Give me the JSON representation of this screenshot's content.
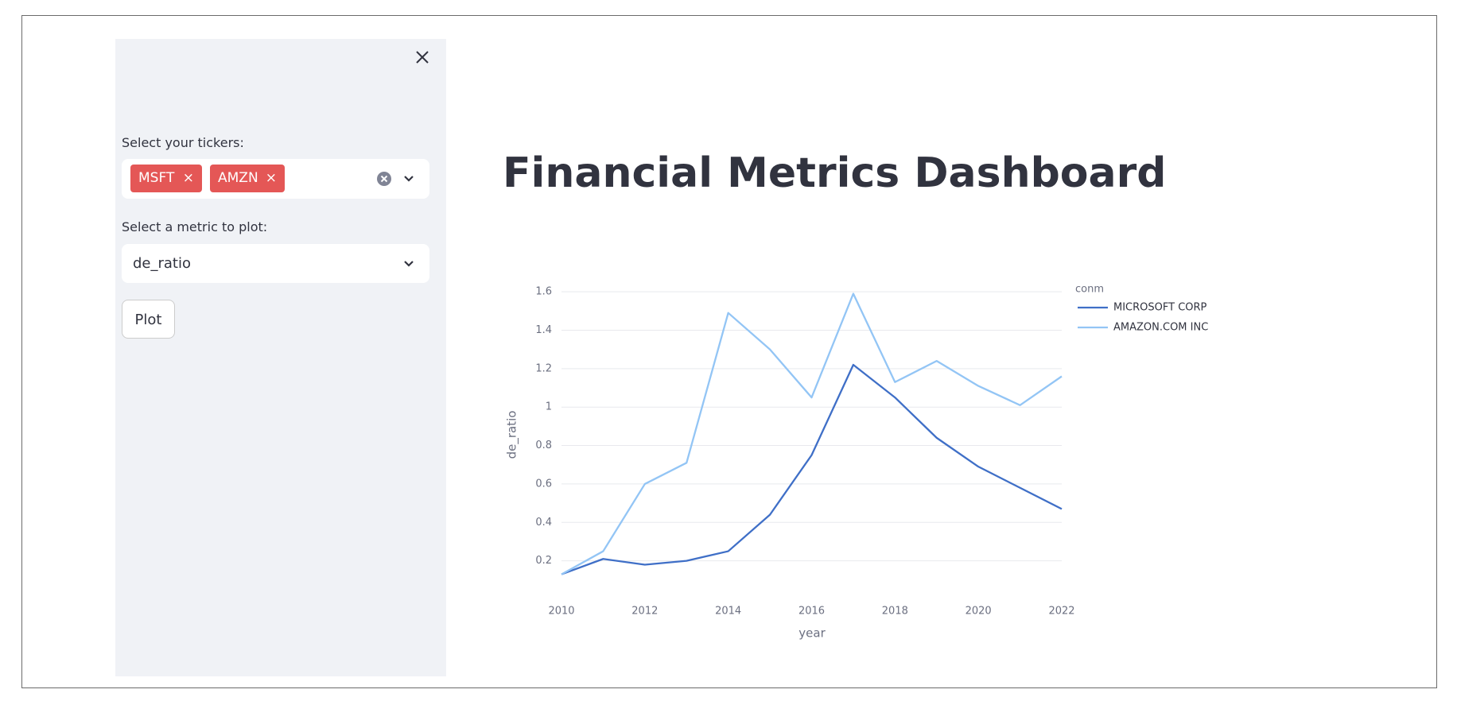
{
  "title": "Financial Metrics Dashboard",
  "sidebar": {
    "tickers_label": "Select your tickers:",
    "tickers": [
      "MSFT",
      "AMZN"
    ],
    "metric_label": "Select a metric to plot:",
    "metric": "de_ratio",
    "button": "Plot"
  },
  "chart_data": {
    "type": "line",
    "x_label": "year",
    "y_label": "de_ratio",
    "legend_title": "conm",
    "x": [
      2010,
      2011,
      2012,
      2013,
      2014,
      2015,
      2016,
      2017,
      2018,
      2019,
      2020,
      2021,
      2022
    ],
    "series": [
      {
        "name": "MICROSOFT CORP",
        "color": "#3f6fc7",
        "values": [
          0.13,
          0.21,
          0.18,
          0.2,
          0.25,
          0.44,
          0.75,
          1.22,
          1.05,
          0.84,
          0.69,
          0.58,
          0.47
        ]
      },
      {
        "name": "AMAZON.COM INC",
        "color": "#93c5f5",
        "values": [
          0.13,
          0.25,
          0.6,
          0.71,
          1.49,
          1.3,
          1.05,
          1.59,
          1.13,
          1.24,
          1.11,
          1.01,
          1.16
        ]
      }
    ],
    "xlim": [
      2010,
      2022
    ],
    "xticks": [
      2010,
      2012,
      2014,
      2016,
      2018,
      2020,
      2022
    ],
    "ylim": [
      0.12,
      1.65
    ],
    "yticks": [
      0.2,
      0.4,
      0.6,
      0.8,
      1,
      1.2,
      1.4,
      1.6
    ],
    "grid": true
  }
}
